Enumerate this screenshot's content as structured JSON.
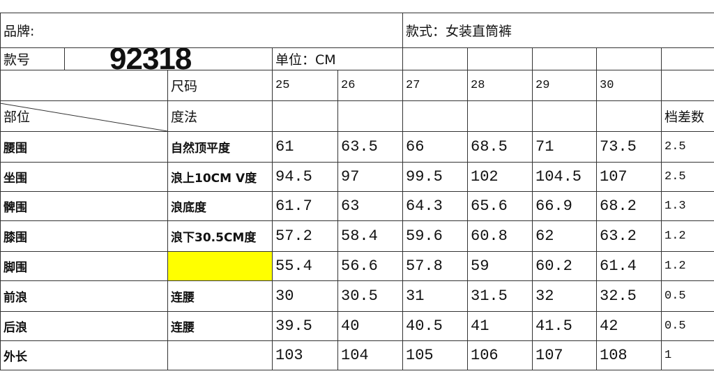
{
  "header": {
    "brand_label": "品牌:",
    "style": "款式：女装直筒裤",
    "style_no_label": "款号",
    "style_no": "92318",
    "unit": "单位：CM",
    "size_label": "尺码",
    "part_label": "部位",
    "method_label": "度法",
    "grade_label": "档差数",
    "sizes": [
      "25",
      "26",
      "27",
      "28",
      "29",
      "30"
    ]
  },
  "table": {
    "rows": [
      {
        "part": "腰围",
        "method": "自然顶平度",
        "values": [
          "61",
          "63.5",
          "66",
          "68.5",
          "71",
          "73.5"
        ],
        "grade": "2.5"
      },
      {
        "part": "坐围",
        "method": "浪上10CM V度",
        "values": [
          "94.5",
          "97",
          "99.5",
          "102",
          "104.5",
          "107"
        ],
        "grade": "2.5"
      },
      {
        "part": "髀围",
        "method": "浪底度",
        "values": [
          "61.7",
          "63",
          "64.3",
          "65.6",
          "66.9",
          "68.2"
        ],
        "grade": "1.3"
      },
      {
        "part": "膝围",
        "method": "浪下30.5CM度",
        "values": [
          "57.2",
          "58.4",
          "59.6",
          "60.8",
          "62",
          "63.2"
        ],
        "grade": "1.2"
      },
      {
        "part": "脚围",
        "method": null,
        "method_fill": "#ffff00",
        "values": [
          "55.4",
          "56.6",
          "57.8",
          "59",
          "60.2",
          "61.4"
        ],
        "grade": "1.2"
      },
      {
        "part": "前浪",
        "method": "连腰",
        "values": [
          "30",
          "30.5",
          "31",
          "31.5",
          "32",
          "32.5"
        ],
        "grade": "0.5"
      },
      {
        "part": "后浪",
        "method": "连腰",
        "values": [
          "39.5",
          "40",
          "40.5",
          "41",
          "41.5",
          "42"
        ],
        "grade": "0.5"
      },
      {
        "part": "外长",
        "method": null,
        "values": [
          "103",
          "104",
          "105",
          "106",
          "107",
          "108"
        ],
        "grade": "1"
      }
    ]
  }
}
